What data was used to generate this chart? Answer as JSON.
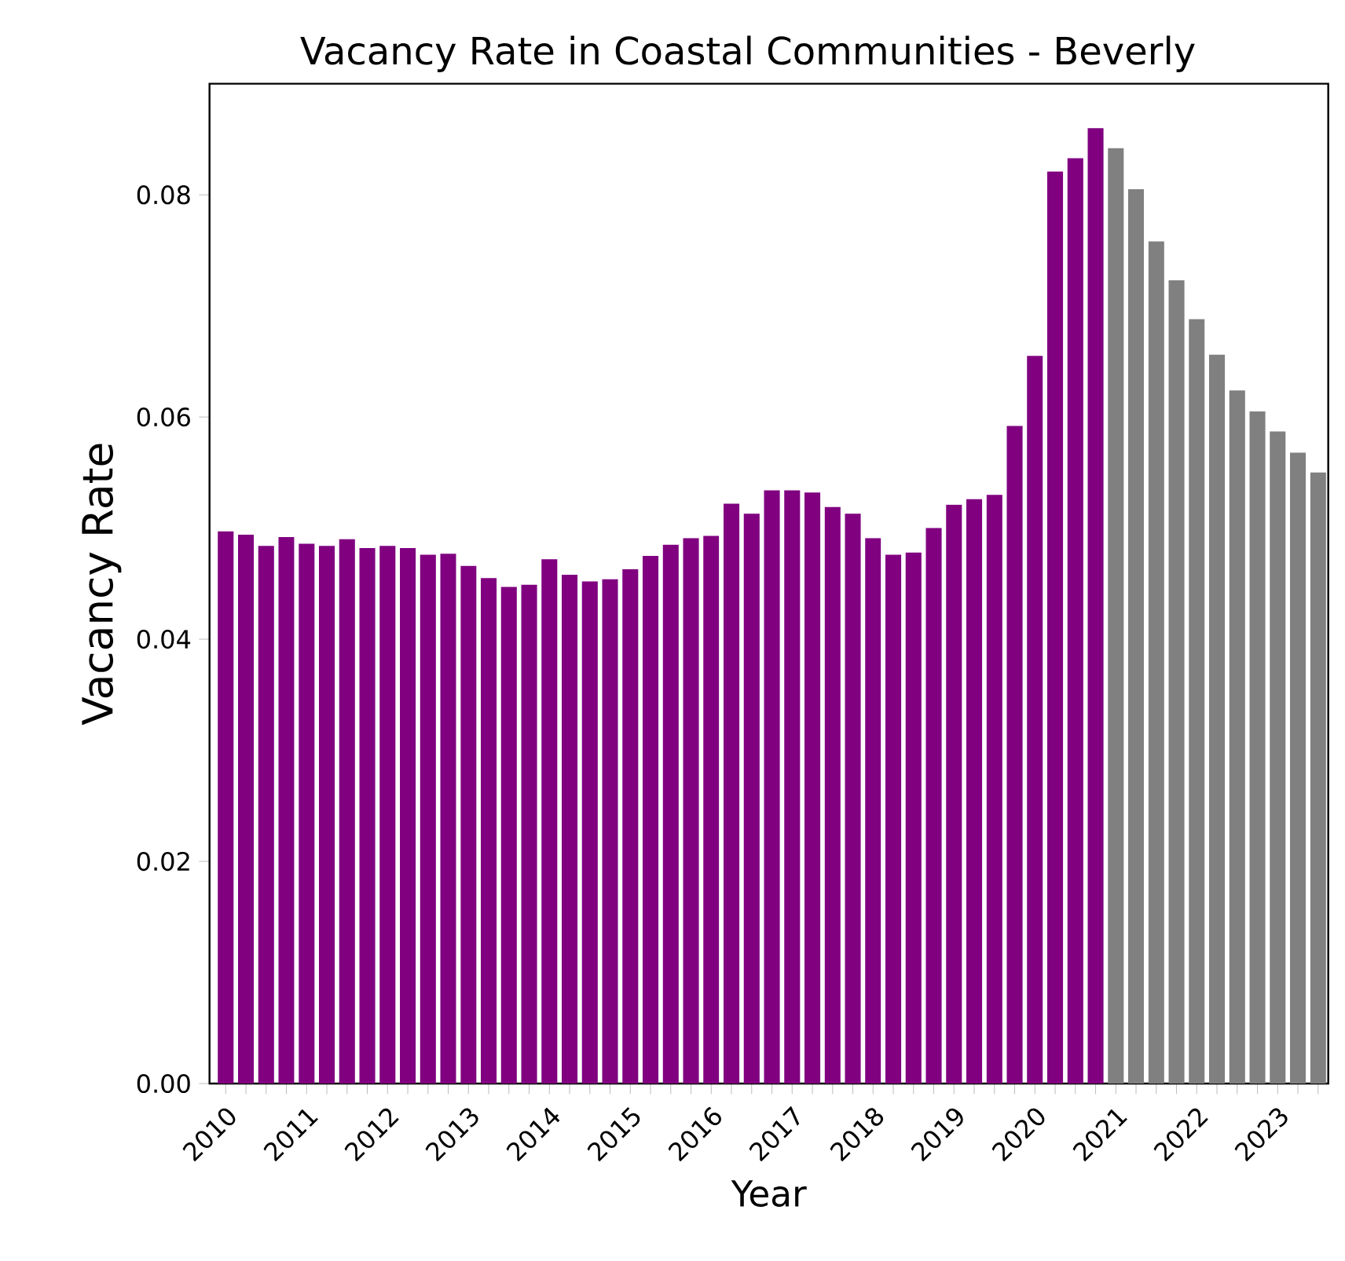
{
  "chart_data": {
    "type": "bar",
    "title": "Vacancy Rate in Coastal Communities - Beverly",
    "xlabel": "Year",
    "ylabel": "Vacancy Rate",
    "categories": [
      "2010",
      null,
      null,
      null,
      "2011",
      null,
      null,
      null,
      "2012",
      null,
      null,
      null,
      "2013",
      null,
      null,
      null,
      "2014",
      null,
      null,
      null,
      "2015",
      null,
      null,
      null,
      "2016",
      null,
      null,
      null,
      "2017",
      null,
      null,
      null,
      "2018",
      null,
      null,
      null,
      "2019",
      null,
      null,
      null,
      "2020",
      null,
      null,
      null,
      "2021",
      null,
      null,
      null,
      "2022",
      null,
      null,
      null,
      "2023",
      null,
      null
    ],
    "values": [
      0.0497,
      0.0494,
      0.0484,
      0.0492,
      0.0486,
      0.0484,
      0.049,
      0.0482,
      0.0484,
      0.0482,
      0.0476,
      0.0477,
      0.0466,
      0.0455,
      0.0447,
      0.0449,
      0.0472,
      0.0458,
      0.0452,
      0.0454,
      0.0463,
      0.0475,
      0.0485,
      0.0491,
      0.0493,
      0.0522,
      0.0513,
      0.0534,
      0.0534,
      0.0532,
      0.0519,
      0.0513,
      0.0491,
      0.0476,
      0.0478,
      0.05,
      0.0521,
      0.0526,
      0.053,
      0.0592,
      0.0655,
      0.0821,
      0.0833,
      0.086,
      0.0842,
      0.0805,
      0.0758,
      0.0723,
      0.0688,
      0.0656,
      0.0624,
      0.0605,
      0.0587,
      0.0568,
      0.055
    ],
    "colors": [
      "#800080",
      "#800080",
      "#800080",
      "#800080",
      "#800080",
      "#800080",
      "#800080",
      "#800080",
      "#800080",
      "#800080",
      "#800080",
      "#800080",
      "#800080",
      "#800080",
      "#800080",
      "#800080",
      "#800080",
      "#800080",
      "#800080",
      "#800080",
      "#800080",
      "#800080",
      "#800080",
      "#800080",
      "#800080",
      "#800080",
      "#800080",
      "#800080",
      "#800080",
      "#800080",
      "#800080",
      "#800080",
      "#800080",
      "#800080",
      "#800080",
      "#800080",
      "#800080",
      "#800080",
      "#800080",
      "#800080",
      "#800080",
      "#800080",
      "#800080",
      "#800080",
      "#808080",
      "#808080",
      "#808080",
      "#808080",
      "#808080",
      "#808080",
      "#808080",
      "#808080",
      "#808080",
      "#808080",
      "#808080"
    ],
    "ylim": [
      0,
      0.09
    ],
    "yticks": [
      {
        "value": 0,
        "label": "0.00"
      },
      {
        "value": 0.02,
        "label": "0.02"
      },
      {
        "value": 0.04,
        "label": "0.04"
      },
      {
        "value": 0.06,
        "label": "0.06"
      },
      {
        "value": 0.08,
        "label": "0.08"
      }
    ],
    "grid": false
  }
}
